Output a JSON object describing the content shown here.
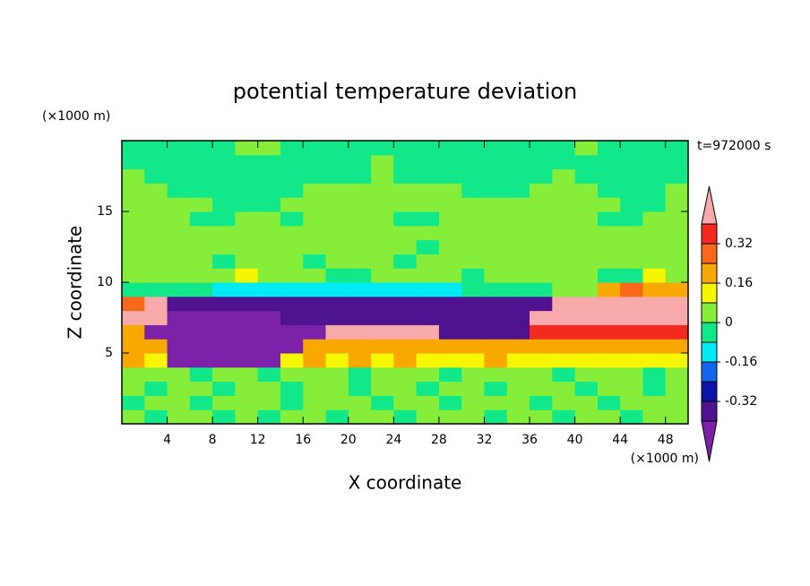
{
  "chart_data": {
    "type": "contour",
    "title": "potential temperature deviation",
    "x_label": "X coordinate",
    "y_label": "Z coordinate",
    "x_unit": "(×1000 m)",
    "y_unit": "(×1000 m)",
    "time_label": "t=972000 s",
    "xlim": [
      0,
      50
    ],
    "ylim": [
      0,
      20
    ],
    "xticks": [
      4,
      8,
      12,
      16,
      20,
      24,
      28,
      32,
      36,
      40,
      44,
      48
    ],
    "yticks": [
      5,
      10,
      15
    ],
    "x": [
      1,
      3,
      5,
      7,
      9,
      11,
      13,
      15,
      17,
      19,
      21,
      23,
      25,
      27,
      29,
      31,
      33,
      35,
      37,
      39,
      41,
      43,
      45,
      47,
      49
    ],
    "y": [
      0.5,
      1.5,
      2.5,
      3.5,
      4.5,
      5.5,
      6.5,
      7.5,
      8.5,
      9.5,
      10.5,
      11.5,
      12.5,
      13.5,
      14.5,
      15.5,
      16.5,
      17.5,
      18.5,
      19.5
    ],
    "z": [
      [
        0.04,
        -0.04,
        0.04,
        0.04,
        -0.04,
        0.04,
        -0.04,
        0.04,
        0.04,
        -0.04,
        0.04,
        0.04,
        -0.04,
        0.04,
        0.04,
        0.04,
        -0.04,
        0.04,
        0.04,
        -0.04,
        0.04,
        0.04,
        -0.04,
        0.04,
        0.04
      ],
      [
        -0.04,
        0.04,
        0.04,
        -0.04,
        0.04,
        0.04,
        0.04,
        -0.04,
        0.04,
        0.04,
        0.04,
        -0.04,
        0.04,
        0.04,
        -0.04,
        0.04,
        0.04,
        0.04,
        -0.04,
        0.04,
        0.04,
        -0.04,
        0.04,
        0.04,
        0.04
      ],
      [
        0.04,
        -0.04,
        0.04,
        0.04,
        -0.04,
        0.04,
        0.04,
        -0.04,
        0.04,
        0.04,
        -0.04,
        0.04,
        0.04,
        -0.04,
        0.04,
        0.04,
        -0.04,
        0.04,
        0.04,
        0.04,
        -0.04,
        0.04,
        0.04,
        -0.04,
        0.04
      ],
      [
        0.04,
        0.04,
        0.04,
        -0.04,
        0.04,
        0.04,
        -0.04,
        0.04,
        0.04,
        0.04,
        -0.04,
        0.04,
        0.04,
        0.04,
        -0.04,
        0.04,
        0.04,
        0.04,
        0.04,
        -0.04,
        0.04,
        0.04,
        0.04,
        -0.04,
        0.04
      ],
      [
        0.2,
        0.12,
        -0.45,
        -0.45,
        -0.45,
        -0.45,
        -0.45,
        0.12,
        0.2,
        0.12,
        0.2,
        0.12,
        0.2,
        0.12,
        0.12,
        0.12,
        0.2,
        0.12,
        0.12,
        0.12,
        0.12,
        0.12,
        0.12,
        0.12,
        0.12
      ],
      [
        0.2,
        0.2,
        -0.45,
        -0.45,
        -0.45,
        -0.45,
        -0.45,
        -0.45,
        0.2,
        0.2,
        0.2,
        0.2,
        0.2,
        0.2,
        0.2,
        0.2,
        0.2,
        0.2,
        0.2,
        0.2,
        0.2,
        0.2,
        0.2,
        0.2,
        0.2
      ],
      [
        0.2,
        -0.45,
        -0.45,
        -0.45,
        -0.45,
        -0.45,
        -0.45,
        -0.45,
        -0.45,
        0.45,
        0.45,
        0.45,
        0.45,
        0.45,
        -0.36,
        -0.36,
        -0.36,
        -0.36,
        0.36,
        0.36,
        0.36,
        0.36,
        0.36,
        0.36,
        0.36
      ],
      [
        0.45,
        0.45,
        -0.45,
        -0.45,
        -0.45,
        -0.45,
        -0.45,
        -0.36,
        -0.36,
        -0.36,
        -0.36,
        -0.36,
        -0.36,
        -0.36,
        -0.36,
        -0.36,
        -0.36,
        -0.36,
        0.45,
        0.45,
        0.45,
        0.45,
        0.45,
        0.45,
        0.45
      ],
      [
        0.28,
        0.45,
        -0.36,
        -0.36,
        -0.36,
        -0.36,
        -0.36,
        -0.36,
        -0.36,
        -0.36,
        -0.36,
        -0.36,
        -0.36,
        -0.36,
        -0.36,
        -0.36,
        -0.36,
        -0.36,
        -0.36,
        0.45,
        0.45,
        0.45,
        0.45,
        0.45,
        0.45
      ],
      [
        -0.04,
        -0.04,
        -0.04,
        -0.04,
        -0.12,
        -0.12,
        -0.12,
        -0.12,
        -0.12,
        -0.12,
        -0.12,
        -0.12,
        -0.12,
        -0.12,
        -0.12,
        -0.04,
        -0.04,
        -0.04,
        -0.04,
        0.04,
        0.04,
        0.2,
        0.28,
        0.2,
        0.2
      ],
      [
        0.04,
        0.04,
        0.04,
        0.04,
        0.04,
        0.12,
        0.04,
        0.04,
        0.04,
        -0.04,
        -0.04,
        0.04,
        0.04,
        0.04,
        0.04,
        -0.04,
        0.04,
        0.04,
        0.04,
        0.04,
        0.04,
        -0.04,
        -0.04,
        0.12,
        0.04
      ],
      [
        0.04,
        0.04,
        0.04,
        0.04,
        -0.04,
        0.04,
        0.04,
        0.04,
        -0.04,
        0.04,
        0.04,
        0.04,
        -0.04,
        0.04,
        0.04,
        0.04,
        0.04,
        0.04,
        0.04,
        0.04,
        0.04,
        0.04,
        0.04,
        0.04,
        0.04
      ],
      [
        0.04,
        0.04,
        0.04,
        0.04,
        0.04,
        0.04,
        0.04,
        0.04,
        0.04,
        0.04,
        0.04,
        0.04,
        0.04,
        -0.04,
        0.04,
        0.04,
        0.04,
        0.04,
        0.04,
        0.04,
        0.04,
        0.04,
        0.04,
        0.04,
        0.04
      ],
      [
        0.04,
        0.04,
        0.04,
        0.04,
        0.04,
        0.04,
        0.04,
        0.04,
        0.04,
        0.04,
        0.04,
        0.04,
        0.04,
        0.04,
        0.04,
        0.04,
        0.04,
        0.04,
        0.04,
        0.04,
        0.04,
        0.04,
        0.04,
        0.04,
        0.04
      ],
      [
        0.04,
        0.04,
        0.04,
        -0.04,
        -0.04,
        0.04,
        0.04,
        -0.04,
        0.04,
        0.04,
        0.04,
        0.04,
        -0.04,
        -0.04,
        0.04,
        0.04,
        0.04,
        0.04,
        0.04,
        0.04,
        0.04,
        -0.04,
        -0.04,
        0.04,
        0.04
      ],
      [
        0.04,
        0.04,
        0.04,
        0.04,
        -0.04,
        -0.04,
        -0.04,
        0.04,
        0.04,
        0.04,
        0.04,
        0.04,
        0.04,
        0.04,
        0.04,
        0.04,
        0.04,
        0.04,
        0.04,
        0.04,
        0.04,
        0.04,
        -0.04,
        -0.04,
        0.04
      ],
      [
        0.04,
        0.04,
        -0.04,
        -0.04,
        -0.04,
        -0.04,
        -0.04,
        -0.04,
        0.04,
        0.04,
        0.04,
        0.04,
        0.04,
        0.04,
        0.04,
        -0.04,
        -0.04,
        -0.04,
        0.04,
        0.04,
        0.04,
        -0.04,
        -0.04,
        -0.04,
        0.04
      ],
      [
        0.04,
        -0.04,
        -0.04,
        -0.04,
        -0.04,
        -0.04,
        -0.04,
        -0.04,
        -0.04,
        -0.04,
        -0.04,
        0.04,
        -0.04,
        -0.04,
        -0.04,
        -0.04,
        -0.04,
        -0.04,
        -0.04,
        0.04,
        -0.04,
        -0.04,
        -0.04,
        -0.04,
        -0.04
      ],
      [
        -0.04,
        -0.04,
        -0.04,
        -0.04,
        -0.04,
        -0.04,
        -0.04,
        -0.04,
        -0.04,
        -0.04,
        -0.04,
        0.04,
        -0.04,
        -0.04,
        -0.04,
        -0.04,
        -0.04,
        -0.04,
        -0.04,
        -0.04,
        -0.04,
        -0.04,
        -0.04,
        -0.04,
        -0.04
      ],
      [
        -0.04,
        -0.04,
        -0.04,
        -0.04,
        -0.04,
        0.04,
        0.04,
        -0.04,
        -0.04,
        -0.04,
        -0.04,
        -0.04,
        -0.04,
        -0.04,
        -0.04,
        -0.04,
        -0.04,
        -0.04,
        -0.04,
        -0.04,
        0.04,
        -0.04,
        -0.04,
        -0.04,
        -0.04
      ]
    ],
    "colorbar": {
      "levels": [
        -0.4,
        -0.32,
        -0.24,
        -0.16,
        -0.08,
        0,
        0.08,
        0.16,
        0.24,
        0.32,
        0.4
      ],
      "colors": [
        "#7b22a8",
        "#4f138f",
        "#0c14a8",
        "#1466f2",
        "#00ecf4",
        "#12e88a",
        "#86ee3a",
        "#f6f600",
        "#f8a800",
        "#f86818",
        "#f42a20",
        "#f8aaaa"
      ],
      "ticks": [
        0.32,
        0.16,
        0,
        -0.16,
        -0.32
      ]
    }
  }
}
